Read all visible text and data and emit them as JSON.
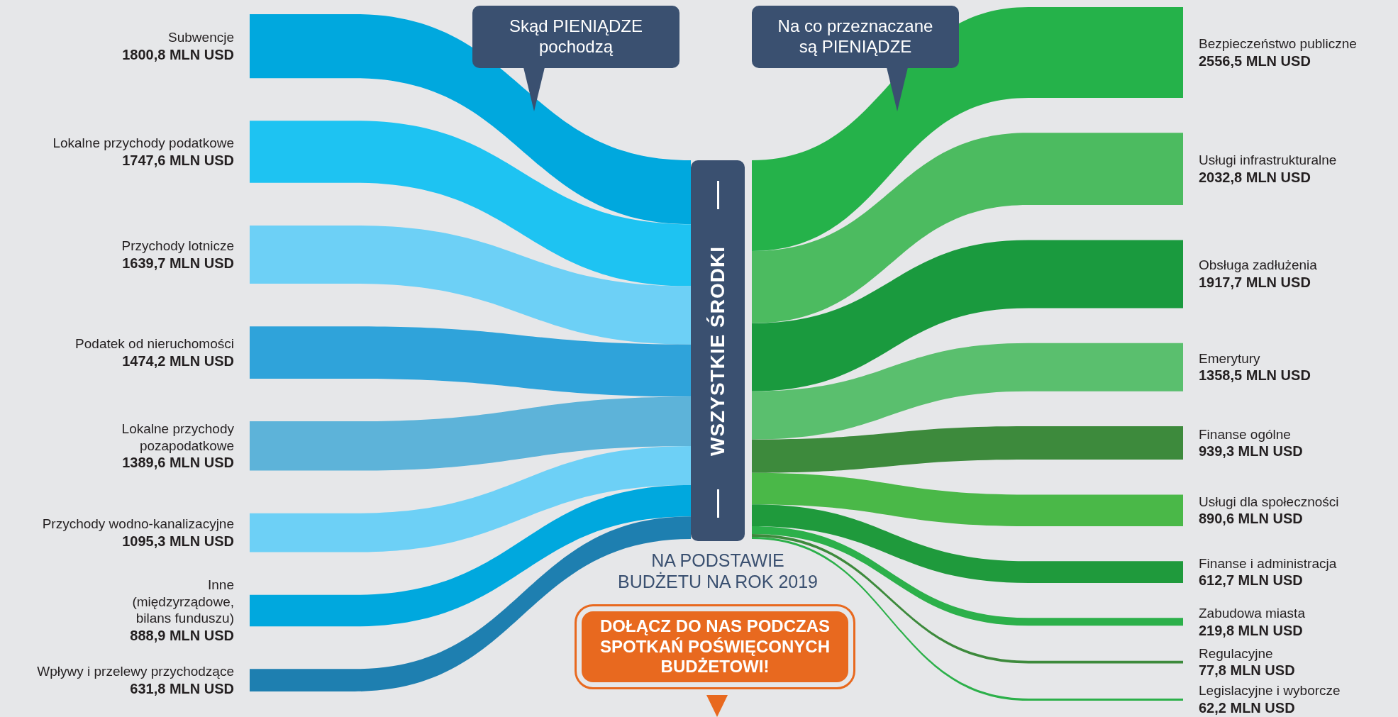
{
  "chart_data": [
    {
      "type": "other",
      "categories": [
        "Subwencje",
        "Lokalne przychody podatkowe",
        "Przychody lotnicze",
        "Podatek od nieruchomości",
        "Lokalne przychody\npozapodatkowe",
        "Przychody wodno-kanalizacyjne",
        "Inne\n(międzyrządowe,\nbilans funduszu)",
        "Wpływy i przelewy przychodzące"
      ],
      "values": [
        1800.8,
        1747.6,
        1639.7,
        1474.2,
        1389.6,
        1095.3,
        888.9,
        631.8
      ],
      "value_labels": [
        "1800,8 MLN USD",
        "1747,6 MLN USD",
        "1639,7 MLN USD",
        "1474,2 MLN USD",
        "1389,6 MLN USD",
        "1095,3 MLN USD",
        "888,9 MLN USD",
        "631,8 MLN USD"
      ],
      "colors": [
        "#00a8de",
        "#1ec3f2",
        "#6dd0f6",
        "#2fa3da",
        "#5db3d9",
        "#6dd0f6",
        "#00a8de",
        "#1e7fb0"
      ],
      "annotations": [
        "Skąd PIENIĄDZE\npochodzą",
        "WSZYSTKIE ŚRODKI",
        "NA PODSTAWIE\nBUDŻETU NA ROK 2019",
        "DOŁĄCZ DO NAS PODCZAS\nSPOTKAŃ POŚWIĘCONYCH\nBUDŻETOWI!"
      ]
    },
    {
      "type": "other",
      "categories": [
        "Bezpieczeństwo publiczne",
        "Usługi infrastrukturalne",
        "Obsługa zadłużenia",
        "Emerytury",
        "Finanse ogólne",
        "Usługi dla społeczności",
        "Finanse i administracja",
        "Zabudowa miasta",
        "Regulacyjne",
        "Legislacyjne i wyborcze"
      ],
      "values": [
        2556.5,
        2032.8,
        1917.7,
        1358.5,
        939.3,
        890.6,
        612.7,
        219.8,
        77.8,
        62.2
      ],
      "value_labels": [
        "2556,5 MLN USD",
        "2032,8 MLN USD",
        "1917,7 MLN USD",
        "1358,5 MLN USD",
        "939,3 MLN USD",
        "890,6 MLN USD",
        "612,7 MLN USD",
        "219,8 MLN USD",
        "77,8 MLN USD",
        "62,2 MLN USD"
      ],
      "colors": [
        "#25b24a",
        "#4cbb60",
        "#1a9a3e",
        "#5abf6e",
        "#3d8a3c",
        "#4ab848",
        "#1f9a3c",
        "#2cb04a",
        "#3d8a3c",
        "#2cb04a"
      ],
      "annotations": [
        "Na co przeznaczane\nsą PIENIĄDZE"
      ]
    }
  ]
}
